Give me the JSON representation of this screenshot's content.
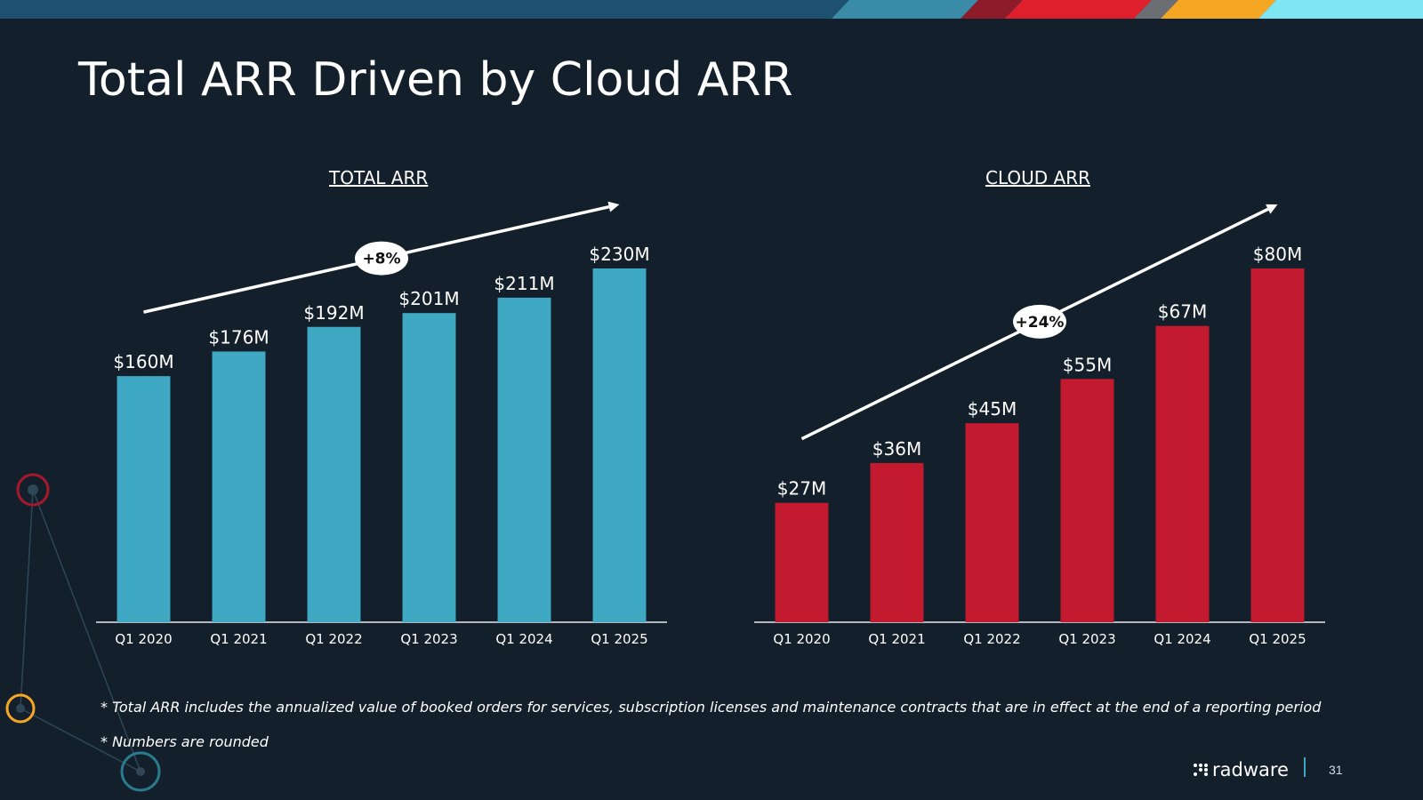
{
  "slide": {
    "title": "Total ARR Driven by Cloud ARR",
    "notes": [
      "* Total ARR includes the annualized value of booked orders for services, subscription licenses and maintenance contracts that are in effect at the end of a reporting period",
      "* Numbers are rounded"
    ],
    "logo_text": "radware",
    "page_number": "31",
    "colors": {
      "background": "#13202c",
      "total_bar": "#3fa9c4",
      "cloud_bar": "#c41a2f",
      "top_bar": "#1e5070",
      "accent_yellow": "#f5a623"
    }
  },
  "chart_data": [
    {
      "type": "bar",
      "title": "TOTAL ARR",
      "categories": [
        "Q1 2020",
        "Q1 2021",
        "Q1 2022",
        "Q1 2023",
        "Q1 2024",
        "Q1 2025"
      ],
      "values": [
        160,
        176,
        192,
        201,
        211,
        230
      ],
      "labels": [
        "$160M",
        "$176M",
        "$192M",
        "$201M",
        "$211M",
        "$230M"
      ],
      "unit": "$M",
      "ylim": [
        0,
        230
      ],
      "growth_label": "+8%",
      "grid": false,
      "legend": "none"
    },
    {
      "type": "bar",
      "title": "CLOUD ARR",
      "categories": [
        "Q1 2020",
        "Q1 2021",
        "Q1 2022",
        "Q1 2023",
        "Q1 2024",
        "Q1 2025"
      ],
      "values": [
        27,
        36,
        45,
        55,
        67,
        80
      ],
      "labels": [
        "$27M",
        "$36M",
        "$45M",
        "$55M",
        "$67M",
        "$80M"
      ],
      "unit": "$M",
      "ylim": [
        0,
        80
      ],
      "growth_label": "+24%",
      "grid": false,
      "legend": "none"
    }
  ]
}
